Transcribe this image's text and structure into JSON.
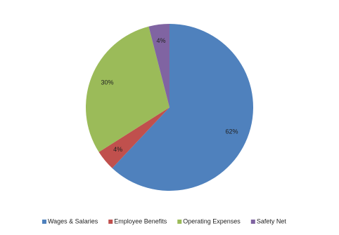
{
  "chart_data": {
    "type": "pie",
    "categories": [
      "Wages & Salaries",
      "Employee Benefits",
      "Operating Expenses",
      "Safety Net"
    ],
    "values": [
      62,
      4,
      30,
      4
    ],
    "value_labels": [
      "62%",
      "4%",
      "30%",
      "4%"
    ],
    "colors": [
      "#4f81bd",
      "#c0504d",
      "#9bbb59",
      "#8064a2"
    ],
    "legend": "bottom"
  }
}
